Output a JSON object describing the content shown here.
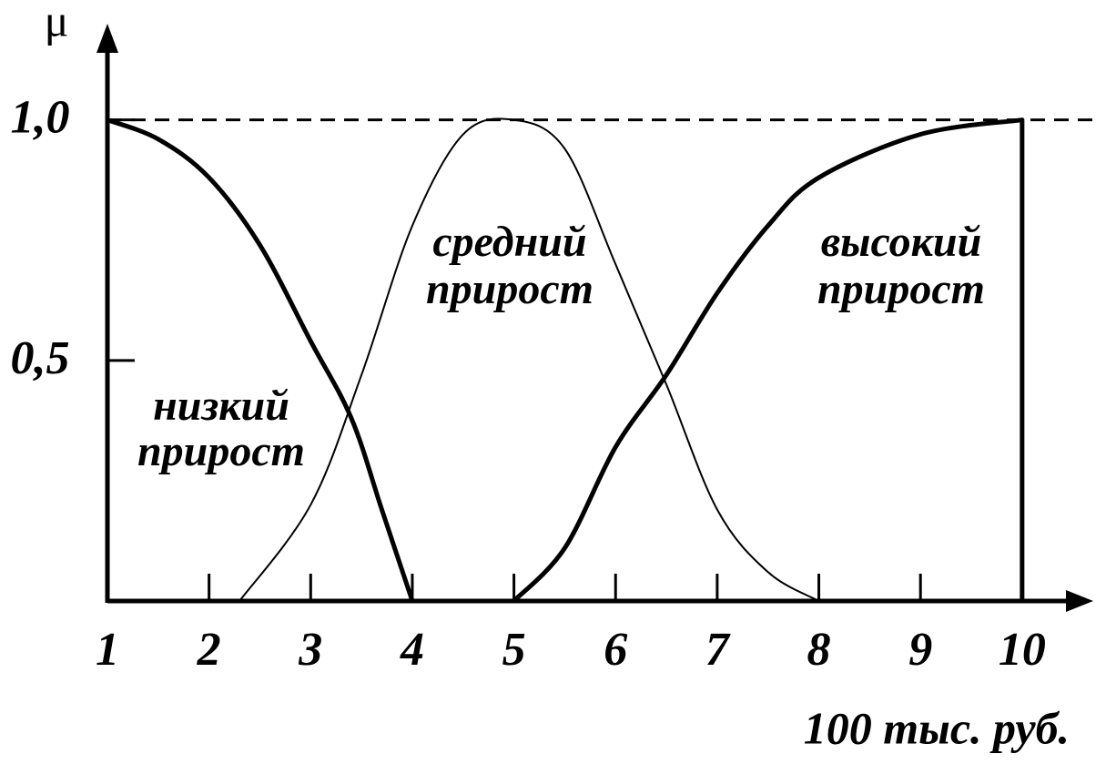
{
  "chart_data": {
    "type": "line",
    "y_label": "μ",
    "x_label": "100 тыс. руб.",
    "xlim": [
      1,
      10.7
    ],
    "ylim": [
      0,
      1.2
    ],
    "xticks": [
      1,
      2,
      3,
      4,
      5,
      6,
      7,
      8,
      9,
      10
    ],
    "yticks": [
      {
        "value": 0.5,
        "label": "0,5"
      },
      {
        "value": 1,
        "label": "1,0"
      }
    ],
    "reference_y": 1,
    "annotations": [
      [
        "низкий",
        "прирост"
      ],
      [
        "средний",
        "прирост"
      ],
      [
        "высокий",
        "прирост"
      ]
    ],
    "series": [
      {
        "color": "#000000",
        "line_width": 5,
        "x": [
          1,
          1.5,
          2,
          2.5,
          3,
          3.4,
          3.7,
          4
        ],
        "values": [
          1,
          0.96,
          0.88,
          0.74,
          0.54,
          0.38,
          0.19,
          0
        ]
      },
      {
        "color": "#000000",
        "line_width": 2,
        "x": [
          2.3,
          3,
          3.5,
          4,
          4.5,
          5,
          5.5,
          6,
          6.5,
          7,
          7.5,
          8
        ],
        "values": [
          0,
          0.2,
          0.47,
          0.78,
          0.97,
          1,
          0.94,
          0.7,
          0.45,
          0.19,
          0.06,
          0
        ]
      },
      {
        "color": "#000000",
        "line_width": 5,
        "x": [
          5,
          5.5,
          6,
          6.5,
          7,
          7.5,
          8,
          9,
          10,
          10
        ],
        "values": [
          0,
          0.11,
          0.32,
          0.47,
          0.64,
          0.78,
          0.88,
          0.97,
          1,
          0
        ]
      }
    ]
  }
}
